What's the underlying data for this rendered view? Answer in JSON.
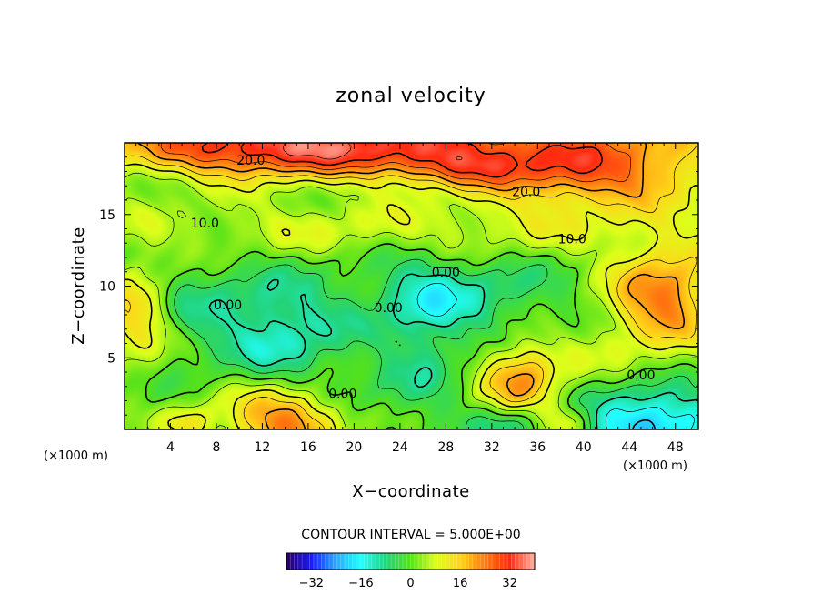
{
  "chart_data": {
    "type": "contour",
    "title": "zonal velocity",
    "xlabel": "X−coordinate",
    "ylabel": "Z−coordinate",
    "x_unit_label": "(×1000 m)",
    "y_unit_label": "(×1000 m)",
    "xlim": [
      0,
      50
    ],
    "ylim": [
      0,
      20
    ],
    "x_ticks": [
      4,
      8,
      12,
      16,
      20,
      24,
      28,
      32,
      36,
      40,
      44,
      48
    ],
    "y_ticks": [
      5,
      10,
      15
    ],
    "contour_interval_text": "CONTOUR INTERVAL = 5.000E+00",
    "contour_labels": [
      {
        "text": "20.0",
        "x": 11,
        "y": 18.8
      },
      {
        "text": "20.0",
        "x": 35,
        "y": 16.6
      },
      {
        "text": "10.0",
        "x": 7,
        "y": 14.4
      },
      {
        "text": "10.0",
        "x": 39,
        "y": 13.3
      },
      {
        "text": "0.00",
        "x": 28,
        "y": 11.0
      },
      {
        "text": "0.00",
        "x": 9,
        "y": 8.7
      },
      {
        "text": "0.00",
        "x": 23,
        "y": 8.5
      },
      {
        "text": "0.00",
        "x": 45,
        "y": 3.8
      },
      {
        "text": "0.00",
        "x": 19,
        "y": 2.5
      }
    ],
    "colorbar": {
      "range": [
        -40,
        40
      ],
      "ticks": [
        -32,
        -16,
        0,
        16,
        32
      ]
    },
    "colormap": [
      "#2a005a",
      "#1a1aff",
      "#2aa8ff",
      "#21ffff",
      "#22d37a",
      "#55e21a",
      "#dcff1a",
      "#ffd51a",
      "#ff7a10",
      "#ff2a10",
      "#ffb0a0"
    ],
    "field_features": [
      {
        "x": 25,
        "y": 20,
        "value": 25,
        "sx": 20,
        "sy": 1.6
      },
      {
        "x": 12,
        "y": 19.5,
        "value": 16,
        "sx": 8,
        "sy": 1.5
      },
      {
        "x": 41,
        "y": 17.5,
        "value": 20,
        "sx": 7,
        "sy": 1.6
      },
      {
        "x": 29,
        "y": 18.2,
        "value": 12,
        "sx": 5,
        "sy": 1
      },
      {
        "x": 26,
        "y": 14,
        "value": 8,
        "sx": 24,
        "sy": 1.5
      },
      {
        "x": 47,
        "y": 9.3,
        "value": 24,
        "sx": 3.5,
        "sy": 2.4
      },
      {
        "x": 1,
        "y": 8,
        "value": 16,
        "sx": 2,
        "sy": 2.5
      },
      {
        "x": 14,
        "y": 6.3,
        "value": -12,
        "sx": 3.5,
        "sy": 3
      },
      {
        "x": 26,
        "y": 6.8,
        "value": -7,
        "sx": 2.4,
        "sy": 3.8
      },
      {
        "x": 29,
        "y": 9.3,
        "value": -10,
        "sx": 6,
        "sy": 2
      },
      {
        "x": 34.5,
        "y": 3.3,
        "value": 20,
        "sx": 2.4,
        "sy": 2.1
      },
      {
        "x": 14,
        "y": 0.8,
        "value": 26,
        "sx": 3.6,
        "sy": 1.9
      },
      {
        "x": 45.5,
        "y": 0.7,
        "value": -24,
        "sx": 4.5,
        "sy": 1.9
      },
      {
        "x": 34,
        "y": 0.4,
        "value": -12,
        "sx": 2.3,
        "sy": 1
      },
      {
        "x": 5.5,
        "y": 0.4,
        "value": 12,
        "sx": 1.6,
        "sy": 0.9
      },
      {
        "x": 38.5,
        "y": 0.5,
        "value": 12,
        "sx": 1.6,
        "sy": 0.9
      },
      {
        "x": 7,
        "y": 8.5,
        "value": -6,
        "sx": 4,
        "sy": 2.5
      },
      {
        "x": 20,
        "y": 2.5,
        "value": -4,
        "sx": 5,
        "sy": 1.5
      },
      {
        "x": 43,
        "y": 3.5,
        "value": 6,
        "sx": 5,
        "sy": 2.5
      }
    ]
  }
}
